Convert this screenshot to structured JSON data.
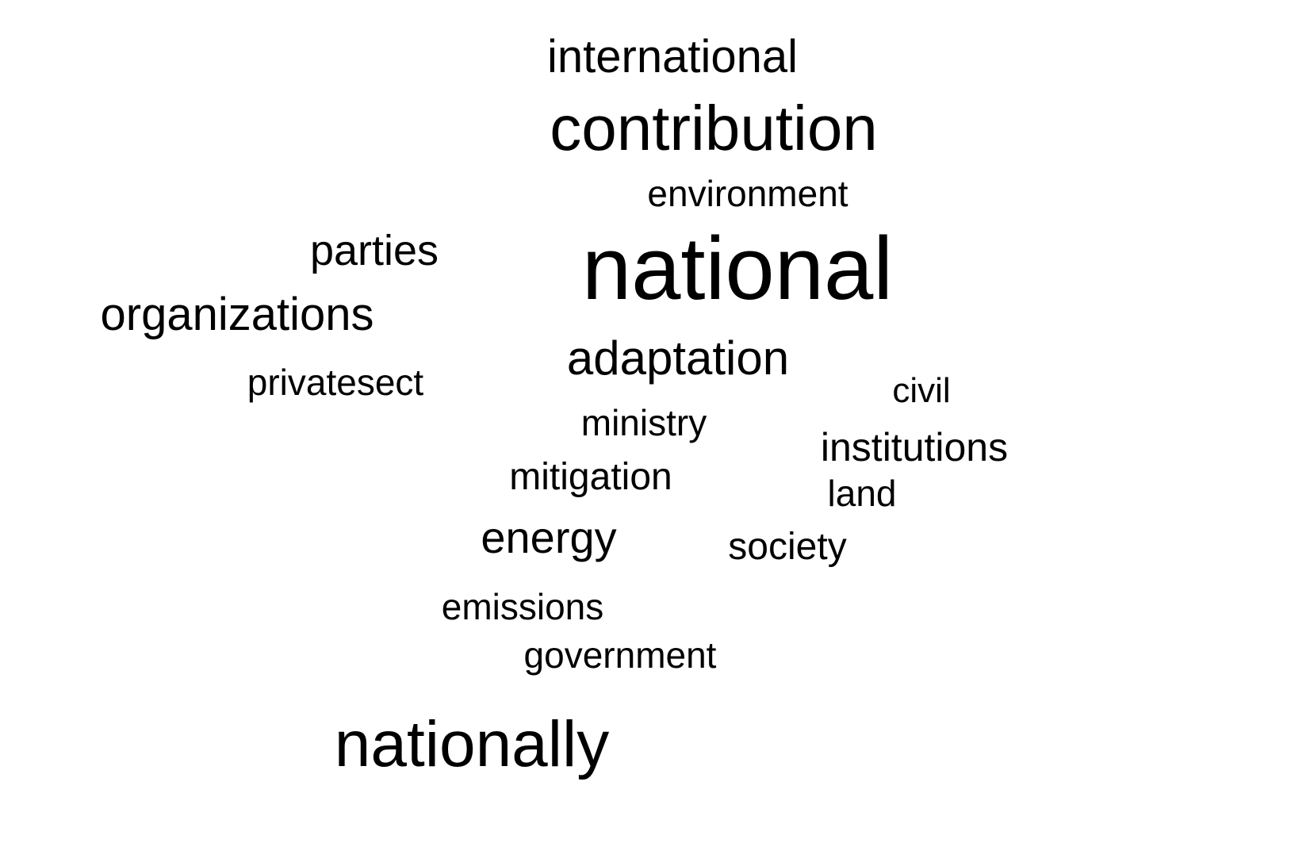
{
  "word_cloud": {
    "words": [
      {
        "key": "international",
        "text": "international"
      },
      {
        "key": "contribution",
        "text": "contribution"
      },
      {
        "key": "environment",
        "text": "environment"
      },
      {
        "key": "parties",
        "text": "parties"
      },
      {
        "key": "national",
        "text": "national"
      },
      {
        "key": "organizations",
        "text": "organizations"
      },
      {
        "key": "adaptation",
        "text": "adaptation"
      },
      {
        "key": "privatesect",
        "text": "privatesect"
      },
      {
        "key": "civil",
        "text": "civil"
      },
      {
        "key": "ministry",
        "text": "ministry"
      },
      {
        "key": "institutions",
        "text": "institutions"
      },
      {
        "key": "mitigation",
        "text": "mitigation"
      },
      {
        "key": "land",
        "text": "land"
      },
      {
        "key": "energy",
        "text": "energy"
      },
      {
        "key": "society",
        "text": "society"
      },
      {
        "key": "emissions",
        "text": "emissions"
      },
      {
        "key": "government",
        "text": "government"
      },
      {
        "key": "nationally",
        "text": "nationally"
      }
    ],
    "text_color": "#000000",
    "background_color": "#ffffff"
  }
}
